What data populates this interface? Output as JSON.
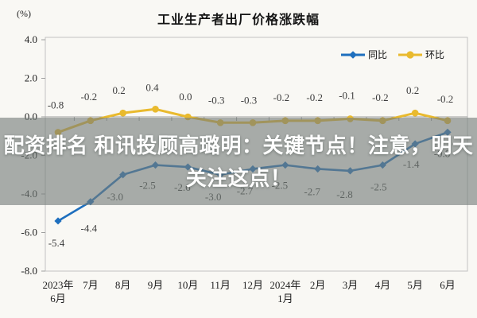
{
  "overlay": {
    "line1": "配资排名 和讯投顾高璐明：关键节点！注意，明天",
    "line2": "关注这点！"
  },
  "chart_data": {
    "type": "line",
    "title": "工业生产者出厂价格涨跌幅",
    "ylabel": "(%)",
    "xlabel": "",
    "ylim": [
      -8.0,
      4.0
    ],
    "ytick_labels": [
      "4.0",
      "2.0",
      "0.0",
      "-2.0",
      "-4.0",
      "-6.0",
      "-8.0"
    ],
    "yticks": [
      4.0,
      2.0,
      0.0,
      -2.0,
      -4.0,
      -6.0,
      -8.0
    ],
    "grid": false,
    "legend_position": "top-right-inside",
    "categories": [
      "2023年\n6月",
      "7月",
      "8月",
      "9月",
      "10月",
      "11月",
      "12月",
      "2024年\n1月",
      "2月",
      "3月",
      "4月",
      "5月",
      "6月"
    ],
    "series": [
      {
        "name": "同比",
        "color": "#1e6fbe",
        "marker": "diamond",
        "values": [
          -5.4,
          -4.4,
          -3.0,
          -2.5,
          -2.6,
          -3.0,
          -2.7,
          -2.5,
          -2.7,
          -2.8,
          -2.5,
          -1.4,
          -0.8
        ],
        "point_labels": [
          "-5.4",
          "-4.4",
          "-3.0",
          "-2.5",
          "-2.6",
          "-3.0",
          "-2.7",
          "-2.5",
          "-2.7",
          "-2.8",
          "-2.5",
          "-1.4",
          "-0.8"
        ]
      },
      {
        "name": "环比",
        "color": "#e9ba2e",
        "marker": "circle",
        "values": [
          -0.8,
          -0.2,
          0.2,
          0.4,
          0.0,
          -0.3,
          -0.3,
          -0.2,
          -0.2,
          -0.1,
          -0.2,
          0.2,
          -0.2
        ],
        "point_labels": [
          "-0.8",
          "-0.2",
          "0.2",
          "0.4",
          "0.0",
          "-0.3",
          "-0.3",
          "-0.2",
          "-0.2",
          "-0.1",
          "-0.2",
          "0.2",
          "-0.2"
        ]
      }
    ],
    "colors": {
      "axis_box": "#c2c2c2",
      "zero_line": "#9f9f9f",
      "tick": "#9f9f9f",
      "label_text": "#3d3d3d",
      "axis_text": "#1f1f1f"
    }
  }
}
